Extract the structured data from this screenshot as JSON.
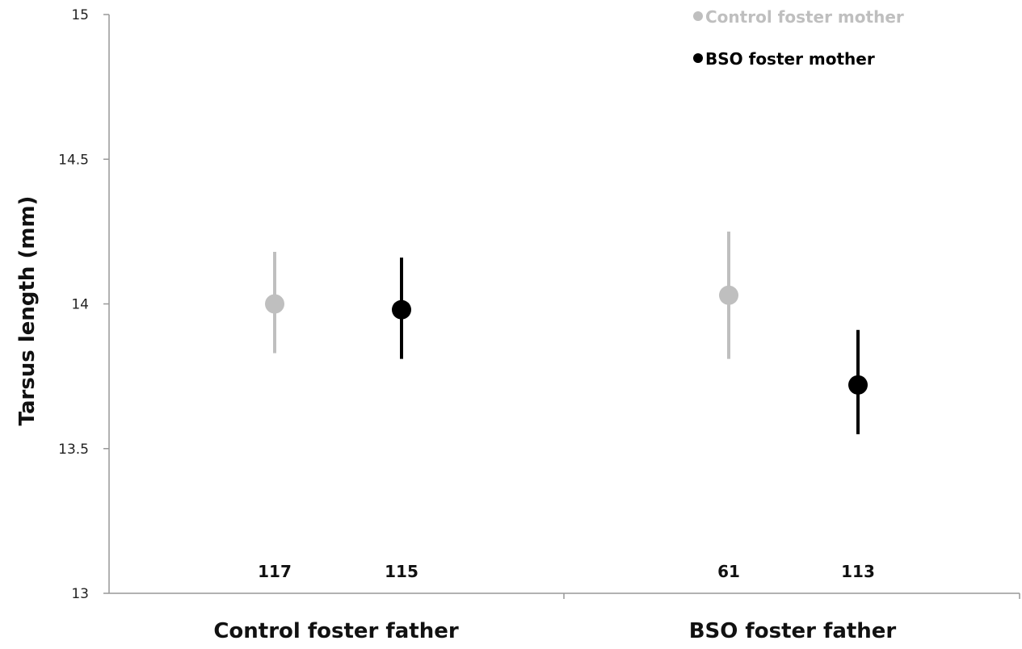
{
  "chart_data": {
    "type": "scatter",
    "ylabel": "Tarsus length (mm)",
    "xlabel": "",
    "ylim": [
      13,
      15
    ],
    "yticks": [
      "13",
      "13.5",
      "14",
      "14.5",
      "15"
    ],
    "categories": [
      "Control foster father",
      "BSO foster father"
    ],
    "series": [
      {
        "name": "Control foster mother",
        "color": "#bfbfbf",
        "values": [
          14.0,
          14.03
        ],
        "error_low": [
          13.83,
          13.81
        ],
        "error_high": [
          14.18,
          14.25
        ],
        "n": [
          "117",
          "61"
        ]
      },
      {
        "name": "BSO foster mother",
        "color": "#000000",
        "values": [
          13.98,
          13.72
        ],
        "error_low": [
          13.81,
          13.55
        ],
        "error_high": [
          14.16,
          13.91
        ],
        "n": [
          "115",
          "113"
        ]
      }
    ],
    "legend_position": "top-right",
    "grid": false
  }
}
